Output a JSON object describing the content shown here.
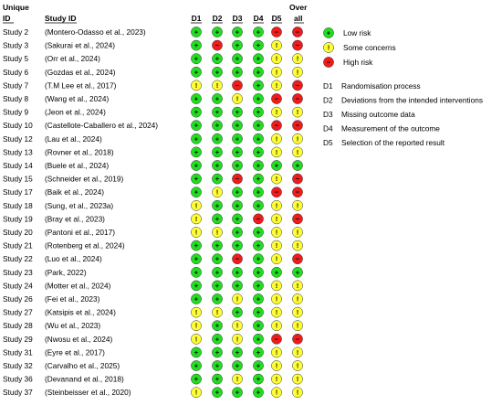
{
  "header": {
    "unique_top": "Unique",
    "unique_bottom": "ID",
    "study_id": "Study ID",
    "domains": [
      "D1",
      "D2",
      "D3",
      "D4",
      "D5"
    ],
    "overall_top": "Over",
    "overall_bottom": "all"
  },
  "legend": {
    "judgements": [
      {
        "key": "L",
        "label": "Low risk"
      },
      {
        "key": "S",
        "label": "Some concerns"
      },
      {
        "key": "H",
        "label": "High risk"
      }
    ],
    "domains": [
      {
        "code": "D1",
        "text": "Randomisation process"
      },
      {
        "code": "D2",
        "text": "Deviations from the intended interventions"
      },
      {
        "code": "D3",
        "text": "Missing outcome data"
      },
      {
        "code": "D4",
        "text": "Measurement of the outcome"
      },
      {
        "code": "D5",
        "text": "Selection of the reported result"
      }
    ]
  },
  "colors": {
    "L": "#22dd22",
    "S": "#ffff33",
    "H": "#ee1c1c"
  },
  "symbols": {
    "L": "+",
    "S": "!",
    "H": "−"
  },
  "chart_data": {
    "type": "table",
    "rows": [
      {
        "id": "Study 2",
        "study": "(Montero-Odasso et al., 2023)",
        "ratings": [
          "L",
          "L",
          "L",
          "L",
          "H",
          "H"
        ]
      },
      {
        "id": "Study 3",
        "study": "(Sakurai et al., 2024)",
        "ratings": [
          "L",
          "H",
          "L",
          "L",
          "S",
          "H"
        ]
      },
      {
        "id": "Study 5",
        "study": "(Orr et al., 2024)",
        "ratings": [
          "L",
          "L",
          "L",
          "L",
          "S",
          "S"
        ]
      },
      {
        "id": "Study 6",
        "study": "(Gozdas et al., 2024)",
        "ratings": [
          "L",
          "L",
          "L",
          "L",
          "S",
          "S"
        ]
      },
      {
        "id": "Study 7",
        "study": "(T.M Lee et al., 2017)",
        "ratings": [
          "S",
          "S",
          "H",
          "L",
          "S",
          "H"
        ]
      },
      {
        "id": "Study 8",
        "study": "(Wang et al., 2024)",
        "ratings": [
          "L",
          "L",
          "S",
          "L",
          "H",
          "H"
        ]
      },
      {
        "id": "Study 9",
        "study": "(Jeon et al., 2024)",
        "ratings": [
          "L",
          "L",
          "L",
          "L",
          "S",
          "S"
        ]
      },
      {
        "id": "Study 10",
        "study": "(Castellote-Caballero et al., 2024)",
        "ratings": [
          "L",
          "L",
          "L",
          "L",
          "H",
          "H"
        ]
      },
      {
        "id": "Study 12",
        "study": "(Lau et al., 2024)",
        "ratings": [
          "L",
          "L",
          "L",
          "L",
          "S",
          "S"
        ]
      },
      {
        "id": "Study 13",
        "study": "(Rovner et al., 2018)",
        "ratings": [
          "L",
          "L",
          "L",
          "L",
          "S",
          "S"
        ]
      },
      {
        "id": "Study 14",
        "study": "(Buele et al., 2024)",
        "ratings": [
          "L",
          "L",
          "L",
          "L",
          "L",
          "L"
        ]
      },
      {
        "id": "Study 15",
        "study": "(Schneider et al., 2019)",
        "ratings": [
          "L",
          "L",
          "H",
          "L",
          "S",
          "H"
        ]
      },
      {
        "id": "Study 17",
        "study": "(Baik et al., 2024)",
        "ratings": [
          "L",
          "S",
          "L",
          "L",
          "H",
          "H"
        ]
      },
      {
        "id": "Study 18",
        "study": "(Sung, et al., 2023a)",
        "ratings": [
          "S",
          "L",
          "L",
          "L",
          "S",
          "S"
        ]
      },
      {
        "id": "Study 19",
        "study": "(Bray et al., 2023)",
        "ratings": [
          "S",
          "L",
          "L",
          "H",
          "S",
          "H"
        ]
      },
      {
        "id": "Study 20",
        "study": "(Pantoni et al., 2017)",
        "ratings": [
          "S",
          "S",
          "L",
          "L",
          "S",
          "S"
        ]
      },
      {
        "id": "Study 21",
        "study": "(Rotenberg et al., 2024)",
        "ratings": [
          "L",
          "L",
          "L",
          "L",
          "S",
          "S"
        ]
      },
      {
        "id": "Study 22",
        "study": "(Luo et al., 2024)",
        "ratings": [
          "L",
          "L",
          "H",
          "L",
          "S",
          "H"
        ]
      },
      {
        "id": "Study 23",
        "study": "(Park, 2022)",
        "ratings": [
          "L",
          "L",
          "L",
          "L",
          "L",
          "L"
        ]
      },
      {
        "id": "Study 24",
        "study": "(Motter et al., 2024)",
        "ratings": [
          "L",
          "L",
          "L",
          "L",
          "S",
          "S"
        ]
      },
      {
        "id": "Study 26",
        "study": "(Fei et al., 2023)",
        "ratings": [
          "L",
          "L",
          "S",
          "L",
          "S",
          "S"
        ]
      },
      {
        "id": "Study 27",
        "study": "(Katsipis et al., 2024)",
        "ratings": [
          "S",
          "S",
          "L",
          "L",
          "S",
          "S"
        ]
      },
      {
        "id": "Study 28",
        "study": "(Wu et al., 2023)",
        "ratings": [
          "S",
          "L",
          "S",
          "L",
          "S",
          "S"
        ]
      },
      {
        "id": "Study 29",
        "study": "(Nwosu et al., 2024)",
        "ratings": [
          "S",
          "L",
          "S",
          "L",
          "H",
          "H"
        ]
      },
      {
        "id": "Study 31",
        "study": "(Eyre et al., 2017)",
        "ratings": [
          "L",
          "L",
          "L",
          "L",
          "S",
          "S"
        ]
      },
      {
        "id": "Study 32",
        "study": "(Carvalho et al., 2025)",
        "ratings": [
          "L",
          "L",
          "L",
          "L",
          "S",
          "S"
        ]
      },
      {
        "id": "Study 36",
        "study": "(Devanand et al., 2018)",
        "ratings": [
          "L",
          "L",
          "S",
          "L",
          "S",
          "S"
        ]
      },
      {
        "id": "Study 37",
        "study": "(Steinbeisser et al., 2020)",
        "ratings": [
          "S",
          "L",
          "L",
          "L",
          "S",
          "S"
        ]
      }
    ]
  }
}
